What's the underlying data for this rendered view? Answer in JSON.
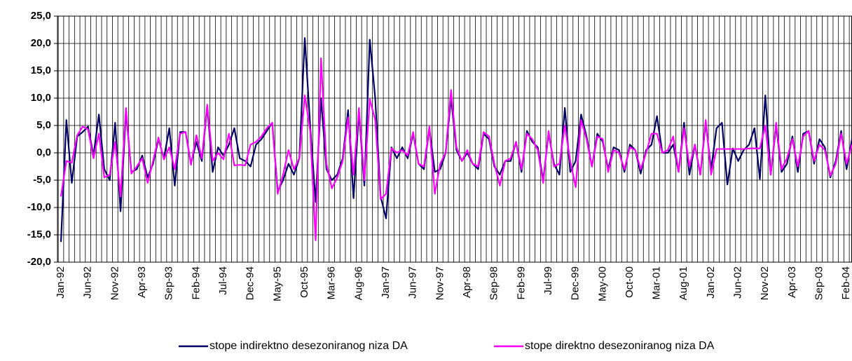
{
  "chart_data": {
    "type": "line",
    "categories": [
      "Jan-92",
      null,
      null,
      null,
      null,
      "Jun-92",
      null,
      null,
      null,
      null,
      "Nov-92",
      null,
      null,
      null,
      null,
      "Apr-93",
      null,
      null,
      null,
      null,
      "Sep-93",
      null,
      null,
      null,
      null,
      "Feb-94",
      null,
      null,
      null,
      null,
      "Jul-94",
      null,
      null,
      null,
      null,
      "Dec-94",
      null,
      null,
      null,
      null,
      "May-95",
      null,
      null,
      null,
      null,
      "Oct-95",
      null,
      null,
      null,
      null,
      "Mar-96",
      null,
      null,
      null,
      null,
      "Aug-96",
      null,
      null,
      null,
      null,
      "Jan-97",
      null,
      null,
      null,
      null,
      "Jun-97",
      null,
      null,
      null,
      null,
      "Nov-97",
      null,
      null,
      null,
      null,
      "Apr-98",
      null,
      null,
      null,
      null,
      "Sep-98",
      null,
      null,
      null,
      null,
      "Feb-99",
      null,
      null,
      null,
      null,
      "Jul-99",
      null,
      null,
      null,
      null,
      "Dec-99",
      null,
      null,
      null,
      null,
      "May-00",
      null,
      null,
      null,
      null,
      "Oct-00",
      null,
      null,
      null,
      null,
      "Mar-01",
      null,
      null,
      null,
      null,
      "Aug-01",
      null,
      null,
      null,
      null,
      "Jan-02",
      null,
      null,
      null,
      null,
      "Jun-02",
      null,
      null,
      null,
      null,
      "Nov-02",
      null,
      null,
      null,
      null,
      "Apr-03",
      null,
      null,
      null,
      null,
      "Sep-03",
      null,
      null,
      null,
      null,
      "Feb-04",
      null
    ],
    "series": [
      {
        "name": "stope indirektno desezoniranog niza DA",
        "color": "#000066",
        "values": [
          -16.3,
          6,
          -5.5,
          3,
          3.8,
          4.8,
          -0.5,
          7,
          -3,
          -5,
          5.5,
          -10.7,
          7.5,
          -3.5,
          -3,
          -0.5,
          -4.5,
          -2,
          2.5,
          -1,
          4.5,
          -6,
          3.8,
          3.8,
          -2,
          2,
          -1.5,
          8.5,
          -3.5,
          1,
          -0.5,
          1.5,
          4.5,
          -1,
          -1.5,
          -2.5,
          1.5,
          2.5,
          4,
          5.5,
          -7,
          -5,
          -2,
          -4,
          -1,
          21,
          5,
          -9,
          10,
          -3,
          -5,
          -4,
          -1,
          7.8,
          -8.3,
          7.5,
          -6,
          20.7,
          10,
          -8,
          -12,
          1,
          -1,
          1,
          -1,
          3.5,
          -2,
          -3,
          4.5,
          -3.5,
          -3,
          0,
          10,
          0.5,
          -1.5,
          0,
          -2,
          -3,
          3.5,
          2.5,
          -2.5,
          -4,
          -1.5,
          -1.5,
          2,
          -3.5,
          4,
          2,
          1,
          -5,
          3.5,
          -2,
          -4,
          8.2,
          -3.5,
          -1.5,
          7,
          3,
          -2.5,
          3.5,
          2,
          -3,
          1,
          0.5,
          -3.5,
          1.5,
          0.5,
          -3.8,
          0.5,
          1.5,
          6.7,
          0,
          0,
          1.5,
          -3.5,
          5.5,
          -4,
          1.5,
          -4,
          5.5,
          -3,
          4.5,
          5.5,
          -5.8,
          0.8,
          -1.5,
          0.5,
          1.5,
          4.5,
          -4.8,
          10.5,
          -4,
          5,
          -3.5,
          -2,
          3,
          -3.5,
          3.5,
          4,
          -2,
          2.5,
          1,
          -4.5,
          -1.5,
          4,
          -3,
          2.5
        ]
      },
      {
        "name": "stope direktno desezoniranog niza DA",
        "color": "#ff00ff",
        "values": [
          -8,
          -1.5,
          -1.8,
          3.2,
          4.8,
          4.3,
          -1,
          3.5,
          -4.5,
          -4,
          2,
          -8,
          8.2,
          -3.8,
          -2.5,
          -1,
          -5.5,
          -1.5,
          2.8,
          -1.2,
          1,
          -3,
          3.5,
          3.8,
          -2.2,
          3.2,
          -1,
          8.8,
          -1.5,
          0,
          -1.2,
          3.5,
          -2.3,
          -2.2,
          -2.3,
          1.5,
          2,
          3,
          4.5,
          5.5,
          -7.5,
          -4,
          0.5,
          -3,
          -1,
          10.5,
          4,
          -16,
          17.3,
          -2,
          -6.5,
          -4.5,
          -1.5,
          6.5,
          -4,
          8.2,
          -5,
          9.8,
          6,
          -8.5,
          -7.5,
          0.8,
          0,
          0.5,
          -0.5,
          3.8,
          -2,
          -2.5,
          4.8,
          -7.5,
          -2,
          0,
          11.5,
          1,
          -1.5,
          0.5,
          -2,
          -2.5,
          3.8,
          3,
          -2,
          -6,
          -1.5,
          -1,
          2,
          -3,
          3.5,
          2.5,
          0.5,
          -5.5,
          4,
          -2.5,
          -2,
          5,
          -1.5,
          -6.3,
          6,
          2.5,
          -2.5,
          3,
          2.5,
          -3.5,
          0.5,
          0,
          -3,
          1,
          0.5,
          -3,
          0,
          3.5,
          3.5,
          0,
          0.5,
          3,
          -3.5,
          4.5,
          -2.5,
          1.5,
          -4,
          6,
          -4,
          0.7,
          0.7,
          0.7,
          0.7,
          0.7,
          0.7,
          0.8,
          0.8,
          0.8,
          5,
          -4,
          5.5,
          -3,
          -1,
          2.5,
          -2.5,
          3,
          4,
          -1.5,
          1.5,
          0.5,
          -4.2,
          -2,
          3.5,
          -2,
          1.5
        ]
      }
    ],
    "ylim": [
      -20,
      25
    ],
    "yticks": [
      {
        "value": 25,
        "label": "25,0"
      },
      {
        "value": 20,
        "label": "20,0"
      },
      {
        "value": 15,
        "label": "15,0"
      },
      {
        "value": 10,
        "label": "10,0"
      },
      {
        "value": 5,
        "label": "5,0"
      },
      {
        "value": 0,
        "label": "0,0"
      },
      {
        "value": -5,
        "label": "-5,0"
      },
      {
        "value": -10,
        "label": "-10,0"
      },
      {
        "value": -15,
        "label": "-15,0"
      },
      {
        "value": -20,
        "label": "-20,0"
      }
    ],
    "grid": true,
    "legend": "bottom"
  }
}
